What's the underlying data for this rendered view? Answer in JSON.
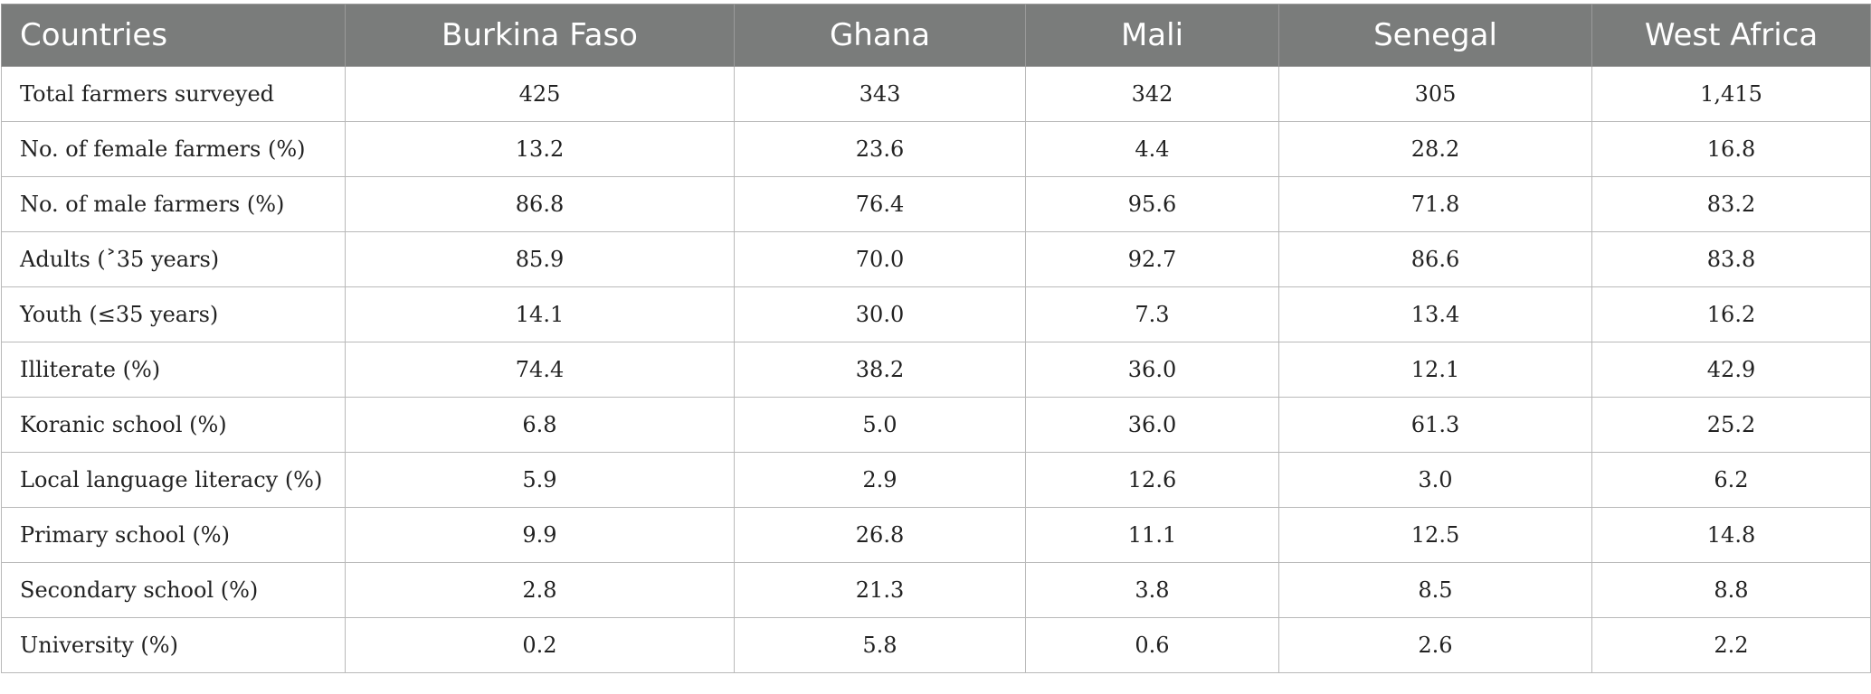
{
  "table": {
    "columns": [
      "Countries",
      "Burkina Faso",
      "Ghana",
      "Mali",
      "Senegal",
      "West Africa"
    ],
    "rows": [
      {
        "label": "Total farmers surveyed",
        "values": [
          "425",
          "343",
          "342",
          "305",
          "1,415"
        ]
      },
      {
        "label": "No. of female farmers (%)",
        "values": [
          "13.2",
          "23.6",
          "4.4",
          "28.2",
          "16.8"
        ]
      },
      {
        "label": "No. of male farmers (%)",
        "values": [
          "86.8",
          "76.4",
          "95.6",
          "71.8",
          "83.2"
        ]
      },
      {
        "label": "Adults (˃35 years)",
        "values": [
          "85.9",
          "70.0",
          "92.7",
          "86.6",
          "83.8"
        ]
      },
      {
        "label": "Youth (≤35 years)",
        "values": [
          "14.1",
          "30.0",
          "7.3",
          "13.4",
          "16.2"
        ]
      },
      {
        "label": "Illiterate (%)",
        "values": [
          "74.4",
          "38.2",
          "36.0",
          "12.1",
          "42.9"
        ]
      },
      {
        "label": "Koranic school (%)",
        "values": [
          "6.8",
          "5.0",
          "36.0",
          "61.3",
          "25.2"
        ]
      },
      {
        "label": "Local language literacy (%)",
        "values": [
          "5.9",
          "2.9",
          "12.6",
          "3.0",
          "6.2"
        ]
      },
      {
        "label": "Primary school (%)",
        "values": [
          "9.9",
          "26.8",
          "11.1",
          "12.5",
          "14.8"
        ]
      },
      {
        "label": "Secondary school (%)",
        "values": [
          "2.8",
          "21.3",
          "3.8",
          "8.5",
          "8.8"
        ]
      },
      {
        "label": "University (%)",
        "values": [
          "0.2",
          "5.8",
          "0.6",
          "2.6",
          "2.2"
        ]
      }
    ]
  },
  "colors": {
    "header_background": "#7a7c7b",
    "header_text": "#ffffff",
    "grid_line": "#b9b9b9"
  }
}
